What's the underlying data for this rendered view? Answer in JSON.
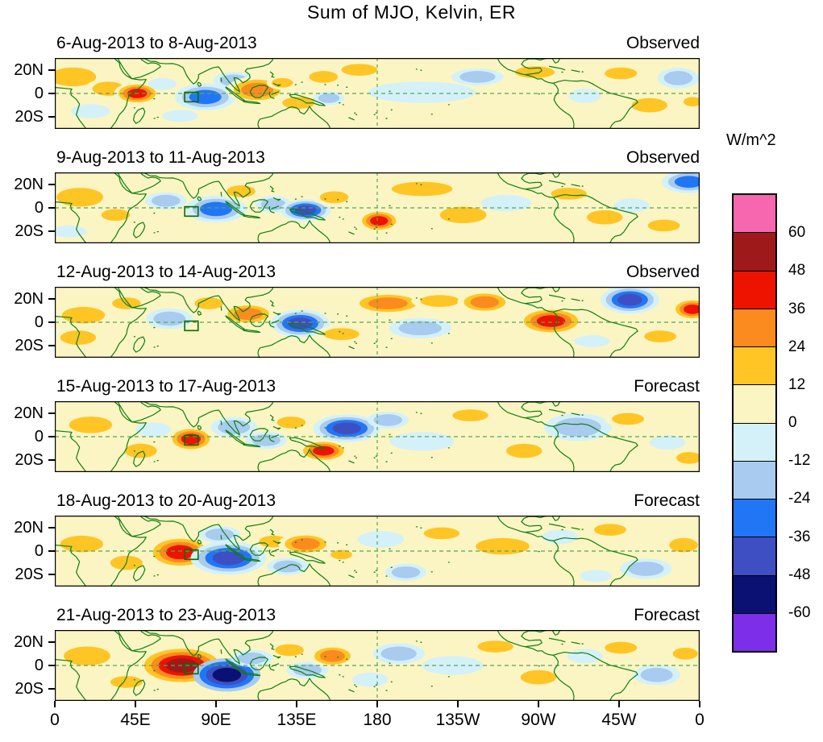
{
  "title": "Sum of MJO, Kelvin, ER",
  "colorbar": {
    "unit_label": "W/m^2",
    "tick_labels": [
      "60",
      "48",
      "36",
      "24",
      "12",
      "0",
      "-12",
      "-24",
      "-36",
      "-48",
      "-60"
    ],
    "segment_colors_top_to_bottom": [
      "#F667B0",
      "#9E1A1A",
      "#ED1300",
      "#FB8B1E",
      "#FFC525",
      "#FBF5C3",
      "#D4F1F9",
      "#A8CBEF",
      "#2176F5",
      "#3E4FC4",
      "#0A1173",
      "#7D2EE8"
    ],
    "level_colors": {
      "1": "#FBF5C3",
      "2": "#FFC525",
      "3": "#FB8B1E",
      "4": "#ED1300",
      "5": "#9E1A1A",
      "6": "#F667B0",
      "-1": "#D4F1F9",
      "-2": "#A8CBEF",
      "-3": "#2176F5",
      "-4": "#3E4FC4",
      "-5": "#0A1173",
      "-6": "#7D2EE8"
    }
  },
  "axes": {
    "y_tick_labels": [
      "20N",
      "0",
      "20S"
    ],
    "x_tick_labels": [
      "0",
      "45E",
      "90E",
      "135E",
      "180",
      "135W",
      "90W",
      "45W",
      "0"
    ]
  },
  "chart_data": {
    "type": "heatmap",
    "title": "Sum of MJO, Kelvin, ER",
    "units": "W/m^2",
    "contour_interval": 12,
    "contour_levels": [
      -60,
      -48,
      -36,
      -24,
      -12,
      0,
      12,
      24,
      36,
      48,
      60
    ],
    "lon_range_deg_east": [
      0,
      360
    ],
    "lat_range_deg": [
      -30,
      30
    ],
    "reference_lines": {
      "equator_dashed": true,
      "dateline_180_dashed": true
    },
    "target_box_lon_lat_bounds": [
      72.5,
      -7,
      80,
      1
    ],
    "anomaly_center_format": "[lon_deg_east, lat_deg, half_width_lon_deg, half_width_lat_deg, level]; |level|=n means peak anomaly in band (n-1)*12..n*12 W/m^2, sign gives anomaly sign",
    "panels": [
      {
        "date_range": "6-Aug-2013 to 8-Aug-2013",
        "label": "Observed",
        "anomaly_centers": [
          [
            10,
            14,
            13,
            8,
            2
          ],
          [
            30,
            4,
            9,
            6,
            2
          ],
          [
            20,
            -15,
            11,
            6,
            -1
          ],
          [
            46,
            0,
            5.5,
            4,
            4
          ],
          [
            60,
            8,
            8,
            5,
            -1
          ],
          [
            84,
            -3,
            9,
            6,
            -3
          ],
          [
            70,
            -19,
            10,
            5,
            -1
          ],
          [
            100,
            11,
            8,
            5,
            -2
          ],
          [
            113,
            3,
            9,
            6,
            3
          ],
          [
            127,
            9,
            6,
            4,
            2
          ],
          [
            136,
            -8,
            9,
            5,
            2
          ],
          [
            150,
            14,
            8,
            5,
            2
          ],
          [
            153,
            -4,
            6,
            4,
            -2
          ],
          [
            170,
            20,
            10,
            5,
            2
          ],
          [
            205,
            1,
            30,
            9,
            -1
          ],
          [
            236,
            14,
            10,
            5,
            -2
          ],
          [
            268,
            18,
            11,
            5,
            2
          ],
          [
            296,
            -2,
            9,
            6,
            -1
          ],
          [
            316,
            17,
            9,
            5,
            2
          ],
          [
            332,
            -10,
            10,
            6,
            2
          ],
          [
            348,
            13,
            8,
            6,
            -2
          ],
          [
            356,
            -7,
            5,
            4,
            2
          ]
        ]
      },
      {
        "date_range": "9-Aug-2013 to 11-Aug-2013",
        "label": "Observed",
        "anomaly_centers": [
          [
            14,
            9,
            13,
            8,
            2
          ],
          [
            34,
            -6,
            8,
            5,
            2
          ],
          [
            8,
            -20,
            10,
            5,
            -1
          ],
          [
            62,
            6,
            8,
            5,
            -2
          ],
          [
            90,
            -1,
            9,
            6,
            -3
          ],
          [
            104,
            14,
            8,
            5,
            2
          ],
          [
            122,
            3,
            7,
            5,
            -2
          ],
          [
            140,
            -2,
            6,
            4,
            -4
          ],
          [
            156,
            9,
            8,
            5,
            2
          ],
          [
            181,
            -11,
            5,
            4,
            4
          ],
          [
            205,
            16,
            17,
            6,
            2
          ],
          [
            228,
            -6,
            13,
            7,
            2
          ],
          [
            252,
            4,
            14,
            7,
            -1
          ],
          [
            287,
            12,
            10,
            5,
            2
          ],
          [
            307,
            -8,
            10,
            6,
            2
          ],
          [
            322,
            2,
            10,
            6,
            -1
          ],
          [
            340,
            -15,
            9,
            5,
            2
          ],
          [
            354,
            22,
            8,
            5,
            -3
          ]
        ]
      },
      {
        "date_range": "12-Aug-2013 to 14-Aug-2013",
        "label": "Observed",
        "anomaly_centers": [
          [
            16,
            6,
            12,
            7,
            2
          ],
          [
            13,
            -13,
            10,
            6,
            2
          ],
          [
            40,
            16,
            8,
            5,
            2
          ],
          [
            64,
            3,
            9,
            6,
            -2
          ],
          [
            86,
            16,
            8,
            5,
            2
          ],
          [
            108,
            7,
            8,
            5,
            3
          ],
          [
            137,
            -1,
            7,
            5,
            -4
          ],
          [
            160,
            -10,
            10,
            5,
            2
          ],
          [
            186,
            16,
            11,
            5,
            3
          ],
          [
            215,
            18,
            11,
            5,
            2
          ],
          [
            204,
            -5,
            12,
            6,
            -2
          ],
          [
            240,
            17,
            8,
            5,
            3
          ],
          [
            277,
            1,
            8,
            5,
            4
          ],
          [
            300,
            -16,
            10,
            5,
            -1
          ],
          [
            321,
            19,
            7,
            5,
            -4
          ],
          [
            338,
            -12,
            9,
            5,
            2
          ],
          [
            356,
            11,
            5,
            4,
            4
          ]
        ]
      },
      {
        "date_range": "15-Aug-2013 to 17-Aug-2013",
        "label": "Forecast",
        "anomaly_centers": [
          [
            20,
            10,
            12,
            7,
            2
          ],
          [
            48,
            -12,
            9,
            6,
            2
          ],
          [
            55,
            6,
            10,
            6,
            -1
          ],
          [
            76,
            -2,
            5.5,
            4.5,
            4
          ],
          [
            100,
            8,
            9,
            6,
            -2
          ],
          [
            118,
            -3,
            8,
            5,
            -2
          ],
          [
            132,
            12,
            8,
            5,
            2
          ],
          [
            150,
            -12,
            6,
            4,
            4
          ],
          [
            163,
            7,
            8,
            5,
            -4
          ],
          [
            186,
            14,
            8,
            5,
            -2
          ],
          [
            205,
            -4,
            18,
            8,
            -1
          ],
          [
            232,
            18,
            10,
            5,
            2
          ],
          [
            262,
            -12,
            10,
            6,
            2
          ],
          [
            292,
            8,
            13,
            8,
            -2
          ],
          [
            320,
            15,
            9,
            5,
            2
          ],
          [
            342,
            -5,
            10,
            6,
            -1
          ],
          [
            354,
            -18,
            7,
            5,
            2
          ]
        ]
      },
      {
        "date_range": "18-Aug-2013 to 20-Aug-2013",
        "label": "Forecast",
        "anomaly_centers": [
          [
            15,
            6,
            12,
            7,
            2
          ],
          [
            40,
            -10,
            9,
            6,
            2
          ],
          [
            70,
            -1,
            8,
            6,
            4
          ],
          [
            97,
            -6,
            9,
            6,
            -4
          ],
          [
            92,
            14,
            8,
            5,
            -2
          ],
          [
            122,
            8,
            8,
            5,
            2
          ],
          [
            140,
            6,
            8,
            5,
            3
          ],
          [
            130,
            -13,
            8,
            5,
            -2
          ],
          [
            160,
            -3,
            6,
            4,
            2
          ],
          [
            182,
            10,
            13,
            7,
            -1
          ],
          [
            196,
            -18,
            8,
            5,
            -2
          ],
          [
            216,
            15,
            10,
            5,
            2
          ],
          [
            250,
            4,
            15,
            7,
            2
          ],
          [
            282,
            12,
            10,
            6,
            -1
          ],
          [
            310,
            18,
            9,
            5,
            2
          ],
          [
            330,
            -15,
            10,
            6,
            -2
          ],
          [
            351,
            5,
            8,
            6,
            2
          ],
          [
            302,
            -21,
            9,
            5,
            -1
          ]
        ]
      },
      {
        "date_range": "21-Aug-2013 to 23-Aug-2013",
        "label": "Forecast",
        "anomaly_centers": [
          [
            18,
            8,
            13,
            8,
            2
          ],
          [
            40,
            -14,
            9,
            5,
            2
          ],
          [
            71,
            0,
            9,
            6,
            5
          ],
          [
            96,
            -8,
            8,
            6,
            -5
          ],
          [
            110,
            6,
            8,
            5,
            -2
          ],
          [
            131,
            13,
            8,
            5,
            2
          ],
          [
            141,
            -4,
            8,
            5,
            -2
          ],
          [
            155,
            8,
            7,
            5,
            3
          ],
          [
            176,
            -12,
            10,
            6,
            -1
          ],
          [
            192,
            10,
            10,
            6,
            -2
          ],
          [
            222,
            0,
            17,
            8,
            -1
          ],
          [
            246,
            16,
            10,
            5,
            2
          ],
          [
            270,
            -10,
            10,
            6,
            2
          ],
          [
            296,
            8,
            10,
            6,
            -1
          ],
          [
            316,
            15,
            9,
            5,
            2
          ],
          [
            336,
            -8,
            9,
            6,
            -2
          ],
          [
            352,
            10,
            7,
            5,
            2
          ]
        ]
      }
    ]
  }
}
